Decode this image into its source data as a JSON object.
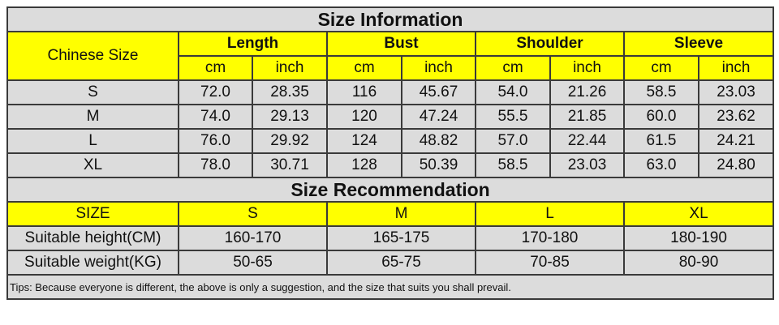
{
  "info": {
    "title": "Size Information",
    "size_header": "Chinese Size",
    "groups": [
      "Length",
      "Bust",
      "Shoulder",
      "Sleeve"
    ],
    "units": [
      "cm",
      "inch"
    ],
    "rows": [
      {
        "size": "S",
        "values": [
          "72.0",
          "28.35",
          "116",
          "45.67",
          "54.0",
          "21.26",
          "58.5",
          "23.03"
        ]
      },
      {
        "size": "M",
        "values": [
          "74.0",
          "29.13",
          "120",
          "47.24",
          "55.5",
          "21.85",
          "60.0",
          "23.62"
        ]
      },
      {
        "size": "L",
        "values": [
          "76.0",
          "29.92",
          "124",
          "48.82",
          "57.0",
          "22.44",
          "61.5",
          "24.21"
        ]
      },
      {
        "size": "XL",
        "values": [
          "78.0",
          "30.71",
          "128",
          "50.39",
          "58.5",
          "23.03",
          "63.0",
          "24.80"
        ]
      }
    ]
  },
  "recommendation": {
    "title": "Size Recommendation",
    "header": [
      "SIZE",
      "S",
      "M",
      "L",
      "XL"
    ],
    "rows": [
      [
        "Suitable height(CM)",
        "160-170",
        "165-175",
        "170-180",
        "180-190"
      ],
      [
        "Suitable weight(KG)",
        "50-65",
        "65-75",
        "70-85",
        "80-90"
      ]
    ],
    "tips": "Tips: Because everyone is different, the above is only a suggestion, and the size that suits you shall prevail."
  },
  "colors": {
    "header_bg": "#ffff00",
    "cell_bg": "#dcdcdc",
    "border": "#3a3a3a"
  }
}
